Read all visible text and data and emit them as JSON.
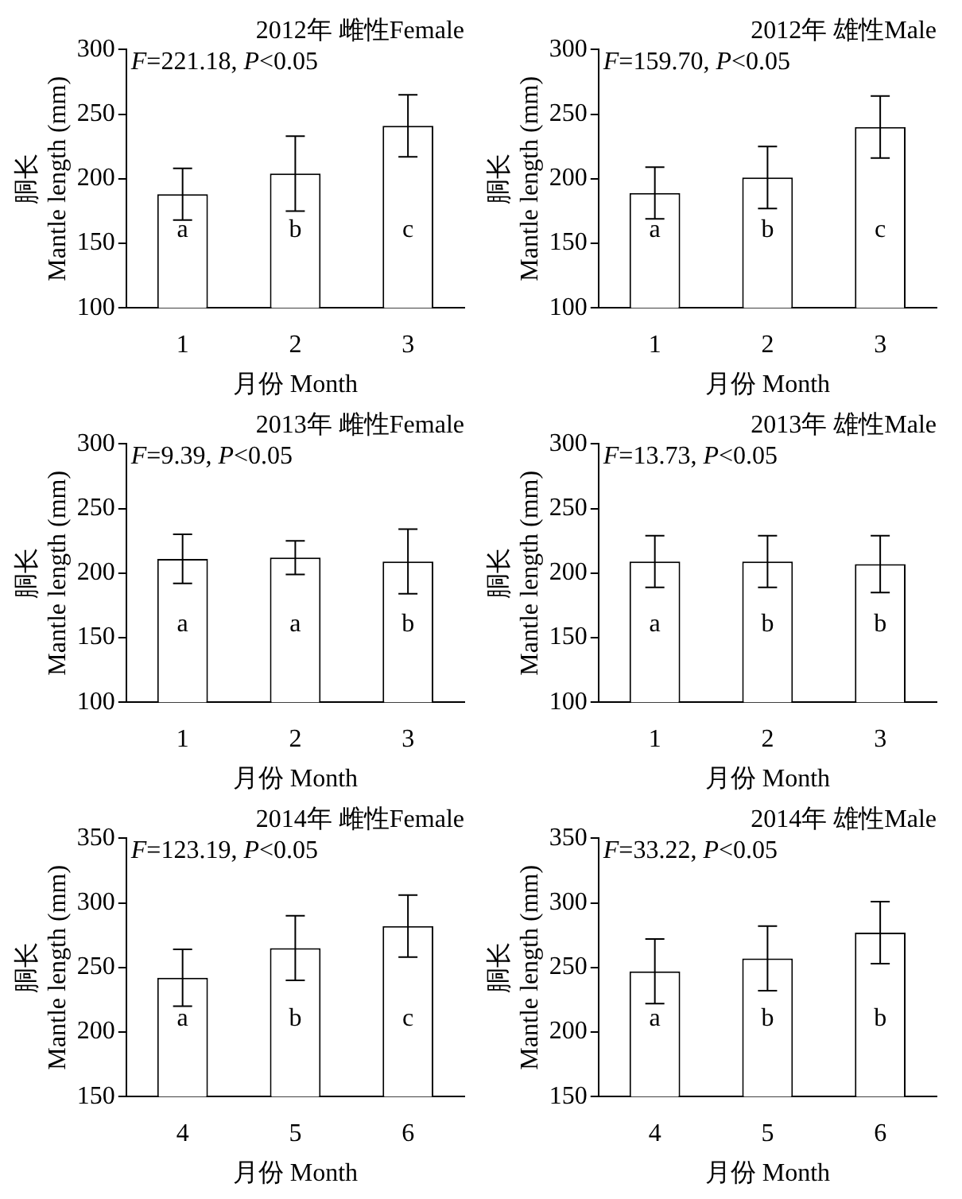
{
  "chart_data": [
    {
      "type": "bar",
      "title": "2012年 雌性Female",
      "subtitle": "F=221.18, P<0.05",
      "xlabel": "月份 Month",
      "ylabel": "胴长\nMantle length (mm)",
      "categories": [
        "1",
        "2",
        "3"
      ],
      "values": [
        188,
        204,
        241
      ],
      "errors": [
        20,
        29,
        24
      ],
      "color": "#ffffff",
      "ylim": [
        100,
        300
      ],
      "yticks": [
        100,
        150,
        200,
        250,
        300
      ],
      "grid": false,
      "legend": false,
      "annotations": [
        "a",
        "b",
        "c"
      ]
    },
    {
      "type": "bar",
      "title": "2012年 雄性Male",
      "subtitle": "F=159.70, P<0.05",
      "xlabel": "月份 Month",
      "ylabel": "胴长\nMantle length (mm)",
      "categories": [
        "1",
        "2",
        "3"
      ],
      "values": [
        189,
        201,
        240
      ],
      "errors": [
        20,
        24,
        24
      ],
      "color": "#ffffff",
      "ylim": [
        100,
        300
      ],
      "yticks": [
        100,
        150,
        200,
        250,
        300
      ],
      "grid": false,
      "legend": false,
      "annotations": [
        "a",
        "b",
        "c"
      ]
    },
    {
      "type": "bar",
      "title": "2013年 雌性Female",
      "subtitle": "F=9.39, P<0.05",
      "xlabel": "月份 Month",
      "ylabel": "胴长\nMantle length (mm)",
      "categories": [
        "1",
        "2",
        "3"
      ],
      "values": [
        211,
        212,
        209
      ],
      "errors": [
        19,
        13,
        25
      ],
      "color": "#ffffff",
      "ylim": [
        100,
        300
      ],
      "yticks": [
        100,
        150,
        200,
        250,
        300
      ],
      "grid": false,
      "legend": false,
      "annotations": [
        "a",
        "a",
        "b"
      ]
    },
    {
      "type": "bar",
      "title": "2013年 雄性Male",
      "subtitle": "F=13.73, P<0.05",
      "xlabel": "月份 Month",
      "ylabel": "胴长\nMantle length (mm)",
      "categories": [
        "1",
        "2",
        "3"
      ],
      "values": [
        209,
        209,
        207
      ],
      "errors": [
        20,
        20,
        22
      ],
      "color": "#ffffff",
      "ylim": [
        100,
        300
      ],
      "yticks": [
        100,
        150,
        200,
        250,
        300
      ],
      "grid": false,
      "legend": false,
      "annotations": [
        "a",
        "b",
        "b"
      ]
    },
    {
      "type": "bar",
      "title": "2014年 雌性Female",
      "subtitle": "F=123.19, P<0.05",
      "xlabel": "月份 Month",
      "ylabel": "胴长\nMantle length (mm)",
      "categories": [
        "4",
        "5",
        "6"
      ],
      "values": [
        242,
        265,
        282
      ],
      "errors": [
        22,
        25,
        24
      ],
      "color": "#ffffff",
      "ylim": [
        150,
        350
      ],
      "yticks": [
        150,
        200,
        250,
        300,
        350
      ],
      "grid": false,
      "legend": false,
      "annotations": [
        "a",
        "b",
        "c"
      ]
    },
    {
      "type": "bar",
      "title": "2014年 雄性Male",
      "subtitle": "F=33.22, P<0.05",
      "xlabel": "月份 Month",
      "ylabel": "胴长\nMantle length (mm)",
      "categories": [
        "4",
        "5",
        "6"
      ],
      "values": [
        247,
        257,
        277
      ],
      "errors": [
        25,
        25,
        24
      ],
      "color": "#ffffff",
      "ylim": [
        150,
        350
      ],
      "yticks": [
        150,
        200,
        250,
        300,
        350
      ],
      "grid": false,
      "legend": false,
      "annotations": [
        "a",
        "b",
        "b"
      ]
    }
  ]
}
